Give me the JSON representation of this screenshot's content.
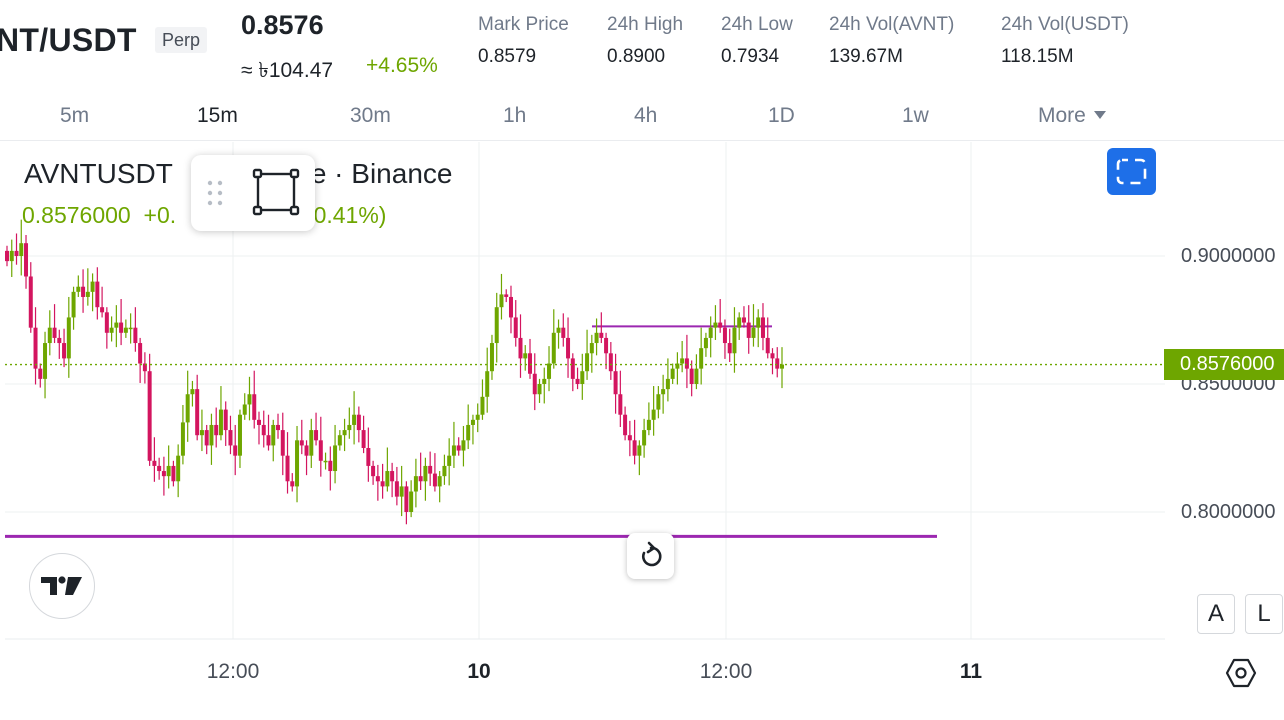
{
  "header": {
    "pair": "NT/USDT",
    "contract_type": "Perp",
    "last_price": "0.8576",
    "fiat_price": "≈ ৳104.47",
    "change_pct": "+4.65%",
    "stats": [
      {
        "label": "Mark Price",
        "value": "0.8579"
      },
      {
        "label": "24h High",
        "value": "0.8900"
      },
      {
        "label": "24h Low",
        "value": "0.7934"
      },
      {
        "label": "24h Vol(AVNT)",
        "value": "139.67M"
      },
      {
        "label": "24h Vol(USDT)",
        "value": "118.15M"
      }
    ]
  },
  "intervals": {
    "items": [
      "5m",
      "15m",
      "30m",
      "1h",
      "4h",
      "1D",
      "1w"
    ],
    "active": "15m",
    "more_label": "More"
  },
  "legend": {
    "title": "AVNTUSDT · Index Price · Binance",
    "title_visible": "AVNTUSDT",
    "title_visible_tail": "ce · Binance",
    "value": "0.8576000",
    "delta_head": "+0.",
    "delta_tail": "+0.41%)"
  },
  "buttons": {
    "auto_scale": "A",
    "log_scale": "L"
  },
  "icons": {
    "drag_handle": "drag-handle-icon",
    "rectangle_tool": "rectangle-tool-icon",
    "fullscreen": "fullscreen-icon",
    "tradingview_logo": "tradingview-logo-icon",
    "reset": "reset-icon",
    "settings": "settings-hexagon-icon"
  },
  "colors": {
    "up": "#6ea600",
    "down": "#d3155f",
    "drawing": "#9c27b0",
    "accent": "#1e6fe8",
    "last_price_line": "#6ea600"
  },
  "chart_data": {
    "type": "candlestick",
    "y_ticks": [
      "0.9000000",
      "0.8500000",
      "0.8000000"
    ],
    "y_tick_values": [
      0.9,
      0.85,
      0.8
    ],
    "last_price_label": "0.8576000",
    "last_price": 0.8576,
    "x_ticks": [
      {
        "label": "12:00",
        "bold": false
      },
      {
        "label": "10",
        "bold": true
      },
      {
        "label": "12:00",
        "bold": false
      },
      {
        "label": "11",
        "bold": true
      }
    ],
    "drawings": [
      {
        "type": "horizontal-line",
        "price": 0.7905
      },
      {
        "type": "horizontal-line",
        "price": 0.8725,
        "segment": true
      }
    ],
    "close_path": [
      0.898,
      0.902,
      0.9,
      0.905,
      0.892,
      0.872,
      0.856,
      0.852,
      0.866,
      0.872,
      0.868,
      0.866,
      0.86,
      0.876,
      0.886,
      0.888,
      0.884,
      0.886,
      0.89,
      0.88,
      0.878,
      0.87,
      0.872,
      0.874,
      0.87,
      0.872,
      0.872,
      0.866,
      0.858,
      0.855,
      0.82,
      0.818,
      0.816,
      0.814,
      0.818,
      0.812,
      0.822,
      0.835,
      0.846,
      0.848,
      0.83,
      0.832,
      0.826,
      0.834,
      0.83,
      0.84,
      0.832,
      0.826,
      0.822,
      0.838,
      0.842,
      0.846,
      0.836,
      0.834,
      0.83,
      0.826,
      0.834,
      0.832,
      0.822,
      0.812,
      0.81,
      0.828,
      0.826,
      0.822,
      0.832,
      0.828,
      0.82,
      0.82,
      0.816,
      0.826,
      0.83,
      0.832,
      0.834,
      0.838,
      0.832,
      0.825,
      0.818,
      0.814,
      0.812,
      0.81,
      0.816,
      0.812,
      0.806,
      0.81,
      0.8,
      0.808,
      0.814,
      0.812,
      0.818,
      0.815,
      0.81,
      0.814,
      0.818,
      0.822,
      0.826,
      0.824,
      0.828,
      0.834,
      0.836,
      0.838,
      0.845,
      0.855,
      0.866,
      0.88,
      0.885,
      0.884,
      0.876,
      0.868,
      0.86,
      0.862,
      0.854,
      0.846,
      0.85,
      0.852,
      0.858,
      0.87,
      0.872,
      0.868,
      0.86,
      0.852,
      0.85,
      0.855,
      0.862,
      0.866,
      0.87,
      0.868,
      0.862,
      0.855,
      0.846,
      0.838,
      0.83,
      0.828,
      0.822,
      0.826,
      0.832,
      0.836,
      0.84,
      0.846,
      0.848,
      0.852,
      0.856,
      0.858,
      0.86,
      0.856,
      0.85,
      0.856,
      0.864,
      0.868,
      0.872,
      0.874,
      0.872,
      0.866,
      0.862,
      0.872,
      0.876,
      0.874,
      0.868,
      0.872,
      0.876,
      0.868,
      0.862,
      0.86,
      0.856,
      0.8576
    ]
  }
}
